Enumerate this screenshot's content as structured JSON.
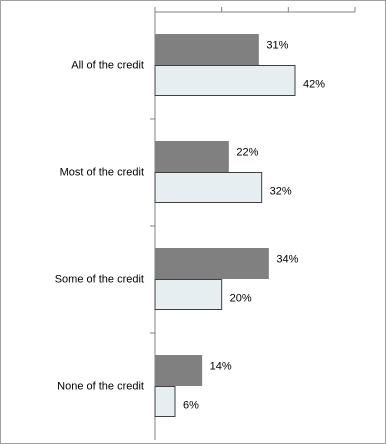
{
  "chart_data": {
    "type": "barh",
    "categories": [
      "All of the credit",
      "Most of the credit",
      "Some of the credit",
      "None of the credit"
    ],
    "series": [
      {
        "color": "#808080",
        "values": [
          31,
          22,
          34,
          14
        ],
        "value_labels": [
          "31%",
          "22%",
          "34%",
          "14%"
        ]
      },
      {
        "color": "#e6eef2",
        "values": [
          42,
          32,
          20,
          6
        ],
        "value_labels": [
          "42%",
          "32%",
          "20%",
          "6%"
        ]
      }
    ],
    "xlim": [
      0,
      60
    ],
    "xticks": [
      0,
      20,
      40,
      60
    ]
  }
}
